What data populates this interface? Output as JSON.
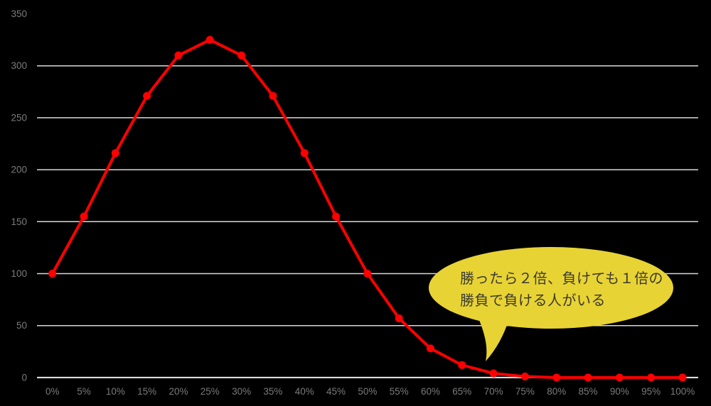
{
  "chart_data": {
    "type": "line",
    "title": "",
    "xlabel": "",
    "ylabel": "",
    "categories": [
      "0%",
      "5%",
      "10%",
      "15%",
      "20%",
      "25%",
      "30%",
      "35%",
      "40%",
      "45%",
      "50%",
      "55%",
      "60%",
      "65%",
      "70%",
      "75%",
      "80%",
      "85%",
      "90%",
      "95%",
      "100%"
    ],
    "values": [
      100,
      155,
      216,
      271,
      310,
      325,
      310,
      271,
      216,
      155,
      100,
      57,
      28,
      12,
      4,
      1,
      0,
      0,
      0,
      0,
      0
    ],
    "ylim": [
      0,
      350
    ],
    "y_ticks": [
      0,
      50,
      100,
      150,
      200,
      250,
      300,
      350
    ],
    "gridline_values": [
      0,
      50,
      100,
      150,
      200,
      250,
      300
    ],
    "grid": "horizontal-only",
    "legend": "none",
    "marker": "circle",
    "series_color": "#ff0000",
    "colors": {
      "background": "#000000",
      "gridline": "#d9d9d9",
      "axis_line": "#eaeaea",
      "tick_label": "#7b7b7b"
    },
    "annotation": {
      "shape": "speech-bubble",
      "text_lines": [
        "勝ったら２倍、負けても１倍の",
        "勝負で負ける人がいる"
      ],
      "bubble_fill": "#e8d334",
      "text_color": "#3b3a30",
      "points_to_category": "70%"
    }
  }
}
